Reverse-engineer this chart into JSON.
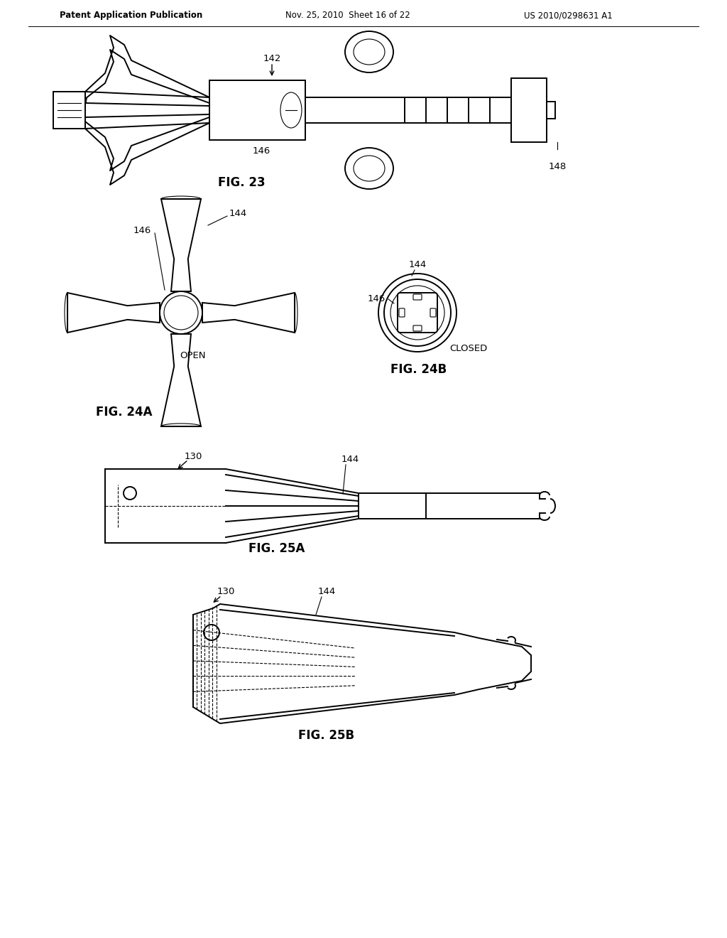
{
  "background_color": "#ffffff",
  "header_left": "Patent Application Publication",
  "header_mid": "Nov. 25, 2010  Sheet 16 of 22",
  "header_right": "US 2010/0298631 A1",
  "fig23_label": "FIG. 23",
  "fig24a_label": "FIG. 24A",
  "fig24b_label": "FIG. 24B",
  "fig25a_label": "FIG. 25A",
  "fig25b_label": "FIG. 25B",
  "lc": "#000000",
  "lw": 1.4,
  "lw_thin": 0.8,
  "fs_label": 9.5,
  "fs_fig": 12,
  "fs_header": 8.5
}
